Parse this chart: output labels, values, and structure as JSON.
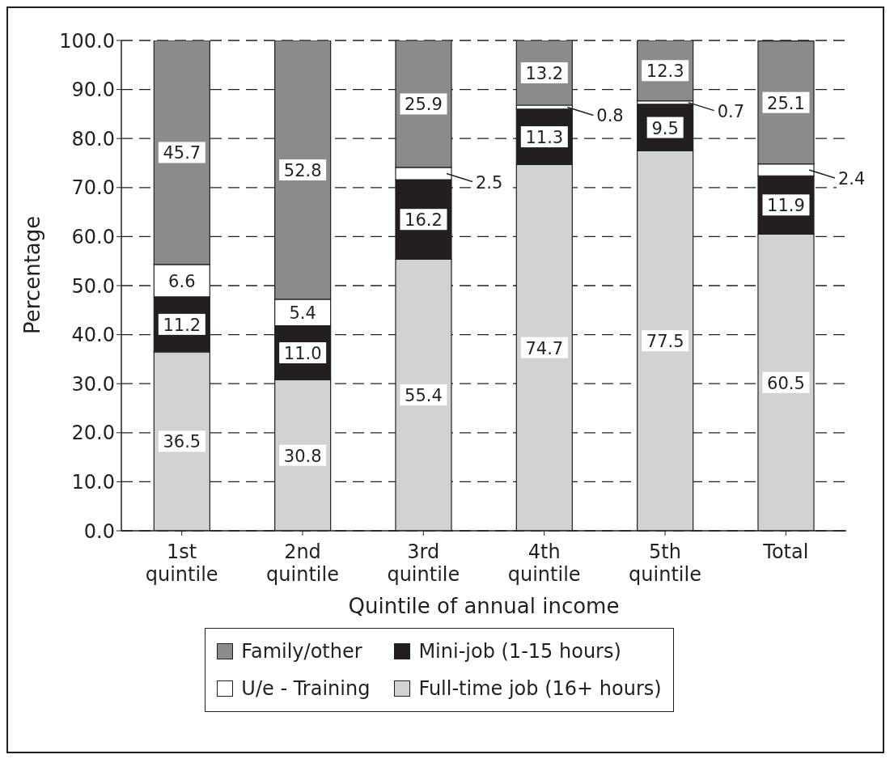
{
  "chart_data": {
    "type": "bar",
    "stacked": true,
    "xlabel": "Quintile of annual income",
    "ylabel": "Percentage",
    "categories": [
      "1st quintile",
      "2nd quintile",
      "3rd quintile",
      "4th quintile",
      "5th quintile",
      "Total"
    ],
    "series": [
      {
        "name": "Full-time job (16+ hours)",
        "color": "#d1d2d4",
        "values": [
          36.5,
          30.8,
          55.4,
          74.7,
          77.5,
          60.5
        ],
        "value_labels": [
          "36.5",
          "30.8",
          "55.4",
          "74.7",
          "77.5",
          "60.5"
        ]
      },
      {
        "name": "Mini-job (1-15 hours)",
        "color": "#231f20",
        "values": [
          11.2,
          11.0,
          16.2,
          11.3,
          9.5,
          11.9
        ],
        "value_labels": [
          "11.2",
          "11.0",
          "16.2",
          "11.3",
          "9.5",
          "11.9"
        ]
      },
      {
        "name": "U/e - Training",
        "color": "#ffffff",
        "values": [
          6.6,
          5.4,
          2.5,
          0.8,
          0.7,
          2.4
        ],
        "value_labels": [
          "6.6",
          "5.4",
          "2.5",
          "0.8",
          "0.7",
          "2.4"
        ]
      },
      {
        "name": "Family/other",
        "color": "#8a8b8d",
        "values": [
          45.7,
          52.8,
          25.9,
          13.2,
          12.3,
          25.1
        ],
        "value_labels": [
          "45.7",
          "52.8",
          "25.9",
          "13.2",
          "12.3",
          "25.1"
        ]
      }
    ],
    "ylim": [
      0,
      100
    ],
    "yticks": [
      {
        "value": 0,
        "label": "0.0"
      },
      {
        "value": 10,
        "label": "10.0"
      },
      {
        "value": 20,
        "label": "20.0"
      },
      {
        "value": 30,
        "label": "30.0"
      },
      {
        "value": 40,
        "label": "40.0"
      },
      {
        "value": 50,
        "label": "50.0"
      },
      {
        "value": 60,
        "label": "60.0"
      },
      {
        "value": 70,
        "label": "70.0"
      },
      {
        "value": 80,
        "label": "80.0"
      },
      {
        "value": 90,
        "label": "90.0"
      },
      {
        "value": 100,
        "label": "100.0"
      }
    ],
    "grid": "y",
    "legend": "bottom"
  }
}
